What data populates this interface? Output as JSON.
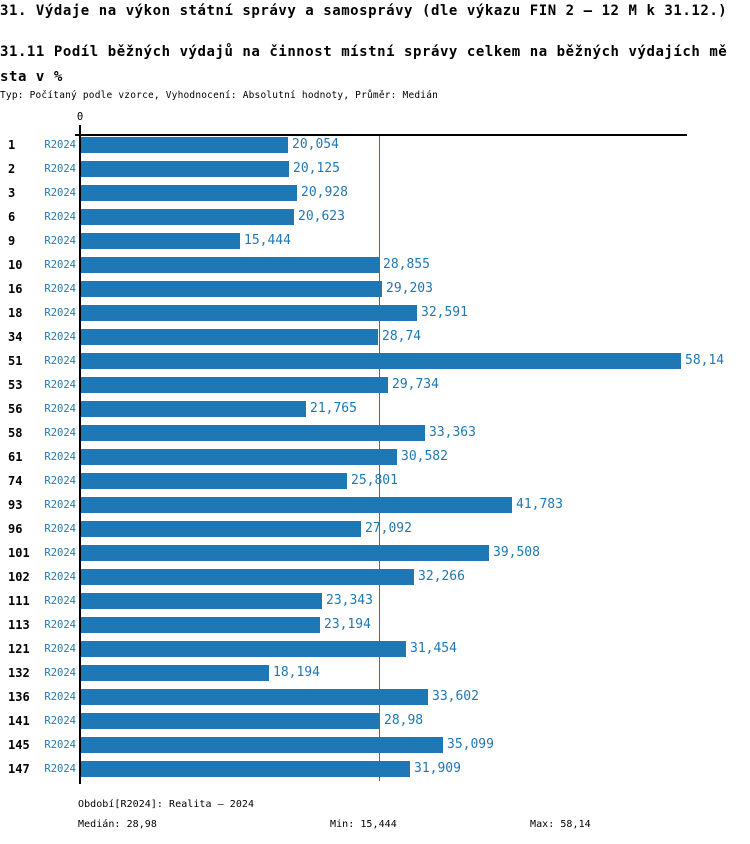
{
  "title": "31. Výdaje na výkon státní správy a samosprávy (dle výkazu FIN 2 – 12 M k 31.12.)",
  "subtitle_line1": "31.11 Podíl běžných výdajů na činnost místní správy celkem na běžných výdajích mě",
  "subtitle_line2": "sta v %",
  "meta_line": "Typ: Počítaný podle vzorce, Vyhodnocení: Absolutní hodnoty, Průměr: Medián",
  "chart_data": {
    "type": "bar",
    "orientation": "horizontal",
    "title": "31.11 Podíl běžných výdajů na činnost místní správy celkem na běžných výdajích města v %",
    "axis_zero_label": "0",
    "xlim": [
      0,
      58.8
    ],
    "series_label": "R2024",
    "categories": [
      "1",
      "2",
      "3",
      "6",
      "9",
      "10",
      "16",
      "18",
      "34",
      "51",
      "53",
      "56",
      "58",
      "61",
      "74",
      "93",
      "96",
      "101",
      "102",
      "111",
      "113",
      "121",
      "132",
      "136",
      "141",
      "145",
      "147"
    ],
    "values": [
      20.054,
      20.125,
      20.928,
      20.623,
      15.444,
      28.855,
      29.203,
      32.591,
      28.74,
      58.14,
      29.734,
      21.765,
      33.363,
      30.582,
      25.801,
      41.783,
      27.092,
      39.508,
      32.266,
      23.343,
      23.194,
      31.454,
      18.194,
      33.602,
      28.98,
      35.099,
      31.909
    ],
    "value_labels": [
      "20,054",
      "20,125",
      "20,928",
      "20,623",
      "15,444",
      "28,855",
      "29,203",
      "32,591",
      "28,74",
      "58,14",
      "29,734",
      "21,765",
      "33,363",
      "30,582",
      "25,801",
      "41,783",
      "27,092",
      "39,508",
      "32,266",
      "23,343",
      "23,194",
      "31,454",
      "18,194",
      "33,602",
      "28,98",
      "35,099",
      "31,909"
    ],
    "median_line_value": 28.98,
    "legend_position": "none",
    "grid": false
  },
  "footer": {
    "period_label": "Období[R2024]: Realita – 2024",
    "median_label": "Medián: 28,98",
    "min_label": "Min: 15,444",
    "max_label": "Max: 58,14"
  },
  "colors": {
    "bar": "#1f77b4",
    "blue_text": "#1f77b4",
    "axis": "#000000",
    "background": "#ffffff"
  }
}
